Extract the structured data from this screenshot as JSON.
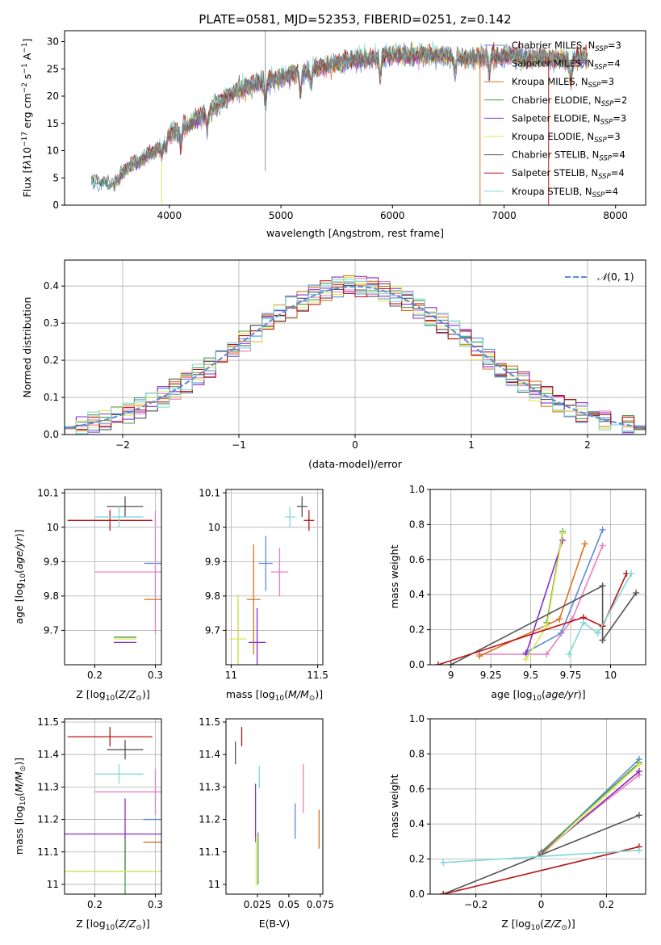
{
  "chart_data": [
    {
      "type": "line",
      "title": "PLATE=0581, MJD=52353, FIBERID=0251, z=0.142",
      "xlabel": "wavelength [Angstrom, rest frame]",
      "ylabel": "Flux [fλ10^-17 erg cm^-2 s^-1 A^-1]",
      "xlim": [
        3060,
        8270
      ],
      "ylim": [
        0,
        32
      ],
      "xticks": [
        4000,
        5000,
        6000,
        7000,
        8000
      ],
      "yticks": [
        0,
        5,
        10,
        15,
        20,
        25,
        30
      ],
      "grid": false,
      "legend_position": "right",
      "series": [
        {
          "name": "Chabrier MILES, N_SSP=3",
          "color": "#5b8bd8"
        },
        {
          "name": "Salpeter MILES, N_SSP=4",
          "color": "#e87fbf"
        },
        {
          "name": "Kroupa MILES, N_SSP=3",
          "color": "#d8751f"
        },
        {
          "name": "Chabrier ELODIE, N_SSP=2",
          "color": "#4e9a4e"
        },
        {
          "name": "Salpeter ELODIE, N_SSP=3",
          "color": "#8b2fc9"
        },
        {
          "name": "Kroupa ELODIE, N_SSP=3",
          "color": "#dde84e"
        },
        {
          "name": "Chabrier STELIB, N_SSP=4",
          "color": "#555555"
        },
        {
          "name": "Salpeter STELIB, N_SSP=4",
          "color": "#b81414"
        },
        {
          "name": "Kroupa STELIB, N_SSP=4",
          "color": "#80d8d8"
        }
      ],
      "continuum": {
        "x": [
          3300,
          3500,
          3700,
          3900,
          4000,
          4200,
          4400,
          4600,
          4800,
          5000,
          5200,
          5400,
          5600,
          5800,
          6000,
          6200,
          6400,
          6600,
          6800,
          7000,
          7200,
          7400,
          7600,
          7700
        ],
        "y": [
          4.5,
          4.0,
          7.5,
          10.5,
          13.0,
          15.0,
          18.0,
          21.0,
          22.5,
          23.5,
          24.5,
          25.5,
          26.5,
          27.0,
          27.5,
          27.5,
          27.5,
          27.0,
          27.0,
          27.5,
          27.0,
          27.0,
          26.5,
          27.0
        ]
      }
    },
    {
      "type": "line",
      "xlabel": "(data-model)/error",
      "ylabel": "Normed distribution",
      "xlim": [
        -2.5,
        2.5
      ],
      "ylim": [
        0,
        0.47
      ],
      "xticks": [
        -2,
        -1,
        0,
        1,
        2
      ],
      "yticks": [
        0.0,
        0.1,
        0.2,
        0.3,
        0.4
      ],
      "grid": true,
      "legend": "N(0,1)",
      "legend_position": "top-right",
      "reference_curve": {
        "name": "N(0,1)",
        "color": "#5b8bd8",
        "style": "dashed"
      },
      "bin_width": 0.1
    },
    {
      "type": "scatter",
      "xlabel": "Z [log10(Z/Z⊙)]",
      "ylabel": "age [log10(age/yr)]",
      "xlim": [
        0.15,
        0.31
      ],
      "ylim": [
        9.6,
        10.11
      ],
      "xticks": [
        0.2,
        0.3
      ],
      "yticks": [
        9.7,
        9.8,
        9.9,
        10.0,
        10.1
      ],
      "grid": true,
      "points": [
        {
          "color": "#555555",
          "x": 0.25,
          "xerr": 0.03,
          "y": 10.06,
          "yerr": 0.03
        },
        {
          "color": "#b81414",
          "x": 0.225,
          "xerr": 0.07,
          "y": 10.02,
          "yerr": 0.03
        },
        {
          "color": "#80d8d8",
          "x": 0.24,
          "xerr": 0.04,
          "y": 10.03,
          "yerr": 0.03
        },
        {
          "color": "#5b8bd8",
          "x": 0.3,
          "xerr": 0.0,
          "y": 9.895,
          "yerr": 0.0
        },
        {
          "color": "#e87fbf",
          "x": 0.3,
          "xerr": 0.1,
          "y": 9.87,
          "yerr": 0.18
        },
        {
          "color": "#d8751f",
          "x": 0.3,
          "xerr": 0.0,
          "y": 9.79,
          "yerr": 0.0
        },
        {
          "color": "#4e9a4e",
          "x": 0.25,
          "xerr": 0.0,
          "y": 9.68,
          "yerr": 0.0
        },
        {
          "color": "#8b2fc9",
          "x": 0.25,
          "xerr": 0.0,
          "y": 9.665,
          "yerr": 0.0
        },
        {
          "color": "#dde84e",
          "x": 0.25,
          "xerr": 0.0,
          "y": 9.675,
          "yerr": 0.0
        }
      ]
    },
    {
      "type": "scatter",
      "xlabel": "mass [log10(M/M⊙)]",
      "ylabel": "",
      "xlim": [
        10.97,
        11.53
      ],
      "ylim": [
        9.6,
        10.11
      ],
      "xticks": [
        11.0,
        11.5
      ],
      "yticks": [
        9.7,
        9.8,
        9.9,
        10.0,
        10.1
      ],
      "grid": true,
      "points": [
        {
          "color": "#555555",
          "x": 11.41,
          "xerr": 0.03,
          "y": 10.06,
          "yerr": 0.03
        },
        {
          "color": "#b81414",
          "x": 11.45,
          "xerr": 0.03,
          "y": 10.02,
          "yerr": 0.03
        },
        {
          "color": "#80d8d8",
          "x": 11.34,
          "xerr": 0.03,
          "y": 10.03,
          "yerr": 0.03
        },
        {
          "color": "#5b8bd8",
          "x": 11.2,
          "xerr": 0.04,
          "y": 9.895,
          "yerr": 0.08
        },
        {
          "color": "#e87fbf",
          "x": 11.28,
          "xerr": 0.05,
          "y": 9.87,
          "yerr": 0.07
        },
        {
          "color": "#d8751f",
          "x": 11.13,
          "xerr": 0.04,
          "y": 9.79,
          "yerr": 0.16
        },
        {
          "color": "#4e9a4e",
          "x": 11.04,
          "xerr": 0.0,
          "y": 9.68,
          "yerr": 0.11
        },
        {
          "color": "#8b2fc9",
          "x": 11.15,
          "xerr": 0.05,
          "y": 9.665,
          "yerr": 0.1
        },
        {
          "color": "#dde84e",
          "x": 11.04,
          "xerr": 0.05,
          "y": 9.675,
          "yerr": 0.13
        }
      ]
    },
    {
      "type": "line",
      "xlabel": "age [log10(age/yr)]",
      "ylabel": "mass weight",
      "xlim": [
        8.87,
        10.22
      ],
      "ylim": [
        0,
        1.0
      ],
      "xticks": [
        9.0,
        9.25,
        9.5,
        9.75,
        10.0
      ],
      "yticks": [
        0.0,
        0.2,
        0.4,
        0.6,
        0.8,
        1.0
      ],
      "grid": true,
      "series": [
        {
          "color": "#5b8bd8",
          "x": [
            9.47,
            9.69,
            9.95
          ],
          "y": [
            0.07,
            0.18,
            0.77
          ]
        },
        {
          "color": "#e87fbf",
          "x": [
            9.18,
            9.6,
            9.76,
            9.95
          ],
          "y": [
            0.06,
            0.06,
            0.26,
            0.68
          ]
        },
        {
          "color": "#d8751f",
          "x": [
            9.18,
            9.68,
            9.84
          ],
          "y": [
            0.05,
            0.26,
            0.69
          ]
        },
        {
          "color": "#4e9a4e",
          "x": [
            9.6,
            9.7
          ],
          "y": [
            0.24,
            0.76
          ]
        },
        {
          "color": "#8b2fc9",
          "x": [
            9.47,
            9.7
          ],
          "y": [
            0.06,
            0.71
          ]
        },
        {
          "color": "#dde84e",
          "x": [
            9.47,
            9.6,
            9.7
          ],
          "y": [
            0.03,
            0.22,
            0.75
          ]
        },
        {
          "color": "#555555",
          "x": [
            9.0,
            9.95,
            9.95,
            10.16
          ],
          "y": [
            0.0,
            0.45,
            0.14,
            0.41
          ]
        },
        {
          "color": "#b81414",
          "x": [
            8.92,
            9.83,
            9.95,
            10.1
          ],
          "y": [
            0.0,
            0.27,
            0.22,
            0.52
          ]
        },
        {
          "color": "#80d8d8",
          "x": [
            9.74,
            9.83,
            9.92,
            10.13
          ],
          "y": [
            0.06,
            0.24,
            0.18,
            0.52
          ]
        }
      ]
    },
    {
      "type": "scatter",
      "xlabel": "Z [log10(Z/Z⊙)]",
      "ylabel": "mass [log10(M/M⊙)]",
      "xlim": [
        0.15,
        0.31
      ],
      "ylim": [
        10.97,
        11.51
      ],
      "xticks": [
        0.2,
        0.3
      ],
      "yticks": [
        11.0,
        11.1,
        11.2,
        11.3,
        11.4,
        11.5
      ],
      "grid": true,
      "points": [
        {
          "color": "#b81414",
          "x": 0.225,
          "xerr": 0.07,
          "y": 11.455,
          "yerr": 0.03
        },
        {
          "color": "#555555",
          "x": 0.25,
          "xerr": 0.03,
          "y": 11.415,
          "yerr": 0.03
        },
        {
          "color": "#80d8d8",
          "x": 0.24,
          "xerr": 0.04,
          "y": 11.34,
          "yerr": 0.03
        },
        {
          "color": "#e87fbf",
          "x": 0.3,
          "xerr": 0.1,
          "y": 11.285,
          "yerr": 0.07
        },
        {
          "color": "#5b8bd8",
          "x": 0.3,
          "xerr": 0.02,
          "y": 11.2,
          "yerr": 0.0
        },
        {
          "color": "#8b2fc9",
          "x": 0.25,
          "xerr": 0.1,
          "y": 11.155,
          "yerr": 0.11
        },
        {
          "color": "#d8751f",
          "x": 0.3,
          "xerr": 0.02,
          "y": 11.13,
          "yerr": 0.0
        },
        {
          "color": "#4e9a4e",
          "x": 0.25,
          "xerr": 0.1,
          "y": 11.04,
          "yerr": 0.1
        },
        {
          "color": "#dde84e",
          "x": 0.25,
          "xerr": 0.1,
          "y": 11.04,
          "yerr": 0.0
        }
      ]
    },
    {
      "type": "scatter",
      "xlabel": "E(B-V)",
      "ylabel": "",
      "xlim": [
        0.0,
        0.077
      ],
      "ylim": [
        10.97,
        11.51
      ],
      "xticks": [
        0.025,
        0.05,
        0.075
      ],
      "yticks": [
        11.0,
        11.1,
        11.2,
        11.3,
        11.4,
        11.5
      ],
      "grid": false,
      "points": [
        {
          "color": "#b81414",
          "x": 0.0125,
          "y": 11.455,
          "yerr": 0.03
        },
        {
          "color": "#555555",
          "x": 0.0075,
          "y": 11.405,
          "yerr": 0.035
        },
        {
          "color": "#80d8d8",
          "x": 0.0265,
          "y": 11.33,
          "yerr": 0.035
        },
        {
          "color": "#e87fbf",
          "x": 0.0615,
          "y": 11.295,
          "yerr": 0.075
        },
        {
          "color": "#8b2fc9",
          "x": 0.0235,
          "y": 11.22,
          "yerr": 0.09
        },
        {
          "color": "#5b8bd8",
          "x": 0.055,
          "y": 11.195,
          "yerr": 0.055
        },
        {
          "color": "#d8751f",
          "x": 0.074,
          "y": 11.17,
          "yerr": 0.06
        },
        {
          "color": "#4e9a4e",
          "x": 0.0255,
          "y": 11.08,
          "yerr": 0.08
        },
        {
          "color": "#dde84e",
          "x": 0.024,
          "y": 11.07,
          "yerr": 0.075
        }
      ]
    },
    {
      "type": "line",
      "xlabel": "Z [log10(Z/Z⊙)]",
      "ylabel": "mass weight",
      "xlim": [
        -0.34,
        0.32
      ],
      "ylim": [
        0,
        1.0
      ],
      "xticks": [
        -0.2,
        0.0,
        0.2
      ],
      "yticks": [
        0.0,
        0.2,
        0.4,
        0.6,
        0.8,
        1.0
      ],
      "grid": true,
      "series": [
        {
          "color": "#5b8bd8",
          "x": [
            0.0,
            0.3
          ],
          "y": [
            0.23,
            0.77
          ]
        },
        {
          "color": "#e87fbf",
          "x": [
            0.0,
            0.3
          ],
          "y": [
            0.24,
            0.68
          ]
        },
        {
          "color": "#d8751f",
          "x": [
            0.0,
            0.3
          ],
          "y": [
            0.23,
            0.7
          ]
        },
        {
          "color": "#4e9a4e",
          "x": [
            0.0,
            0.3
          ],
          "y": [
            0.24,
            0.75
          ]
        },
        {
          "color": "#8b2fc9",
          "x": [
            0.0,
            0.3
          ],
          "y": [
            0.23,
            0.7
          ]
        },
        {
          "color": "#dde84e",
          "x": [
            0.0,
            0.3
          ],
          "y": [
            0.22,
            0.74
          ]
        },
        {
          "color": "#555555",
          "x": [
            -0.3,
            0.3
          ],
          "y": [
            0.0,
            0.45
          ]
        },
        {
          "color": "#b81414",
          "x": [
            -0.3,
            0.3
          ],
          "y": [
            0.0,
            0.27
          ]
        },
        {
          "color": "#80d8d8",
          "x": [
            -0.3,
            0.3
          ],
          "y": [
            0.18,
            0.25
          ]
        }
      ]
    }
  ]
}
